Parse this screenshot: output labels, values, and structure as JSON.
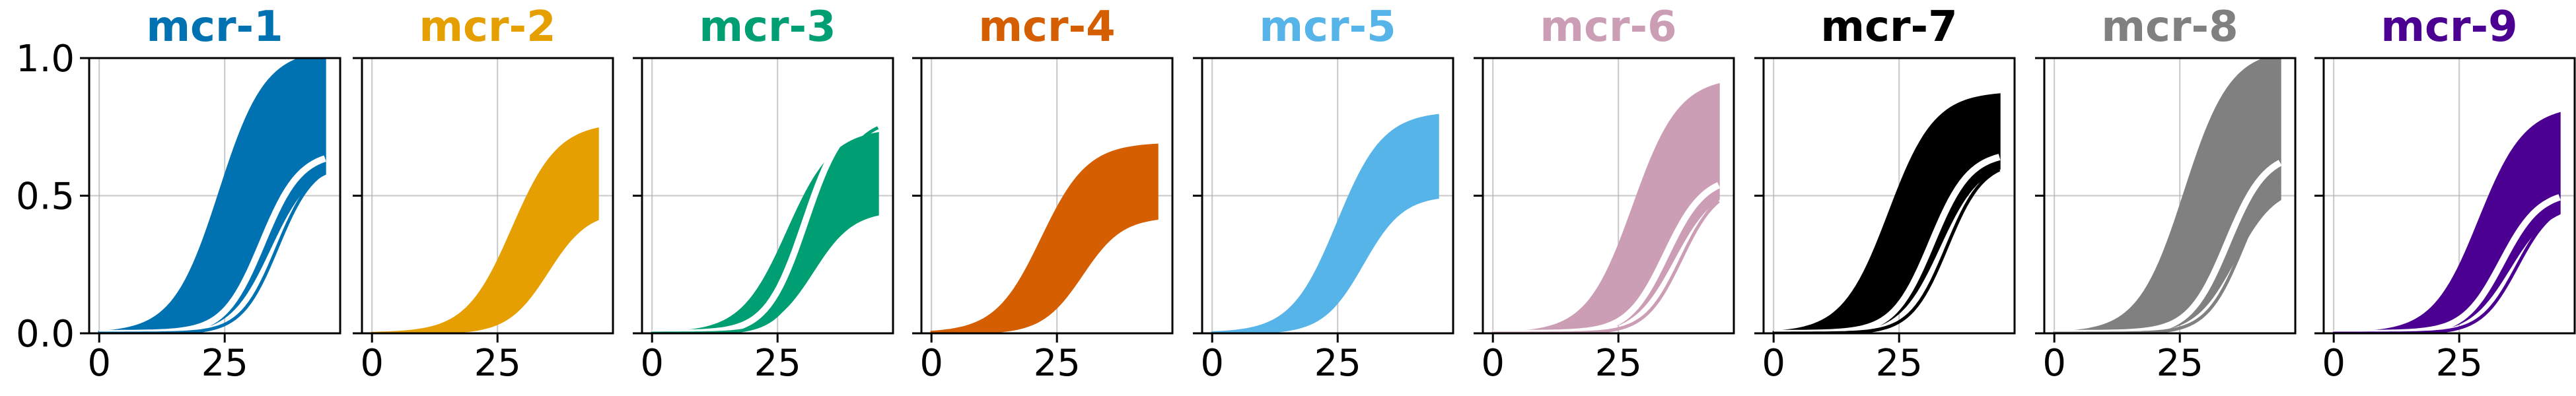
{
  "chart_data": {
    "type": "line",
    "layout": "small-multiples",
    "shared_y_axis": true,
    "xlim": [
      -2,
      48
    ],
    "ylim": [
      0,
      1
    ],
    "x_ticks": [
      0,
      25
    ],
    "x_tick_labels": [
      "0",
      "25"
    ],
    "y_ticks": [
      0,
      0.5,
      1
    ],
    "y_tick_labels": [
      "0.0",
      "0.5",
      "1.0"
    ],
    "grid": true,
    "legend": "none",
    "x_start": 0,
    "x_end": 45,
    "panels": [
      {
        "title": "mcr-1",
        "color": "#0072B2",
        "band_upper_end": 1.0,
        "band_lower_end": 0.55,
        "upper_midpoint": 24,
        "lower_midpoint": 34,
        "outlier_end": 0.58
      },
      {
        "title": "mcr-2",
        "color": "#E69F00",
        "band_upper_end": 0.74,
        "band_lower_end": 0.4,
        "upper_midpoint": 28,
        "lower_midpoint": 35
      },
      {
        "title": "mcr-3",
        "color": "#009E73",
        "band_upper_end": 0.72,
        "band_lower_end": 0.4,
        "upper_midpoint": 27,
        "lower_midpoint": 32,
        "outlier_end": 0.72
      },
      {
        "title": "mcr-4",
        "color": "#D55E00",
        "band_upper_end": 0.67,
        "band_lower_end": 0.38,
        "upper_midpoint": 22,
        "lower_midpoint": 30
      },
      {
        "title": "mcr-5",
        "color": "#56B4E9",
        "band_upper_end": 0.78,
        "band_lower_end": 0.45,
        "upper_midpoint": 25,
        "lower_midpoint": 30
      },
      {
        "title": "mcr-6",
        "color": "#CC9EB5",
        "band_upper_end": 0.9,
        "band_lower_end": 0.48,
        "upper_midpoint": 28,
        "lower_midpoint": 36,
        "outlier_end": 0.5
      },
      {
        "title": "mcr-7",
        "color": "#000000",
        "band_upper_end": 0.85,
        "band_lower_end": 0.56,
        "upper_midpoint": 23,
        "lower_midpoint": 33,
        "outlier_end": 0.58
      },
      {
        "title": "mcr-8",
        "color": "#808080",
        "band_upper_end": 1.0,
        "band_lower_end": 0.48,
        "upper_midpoint": 26,
        "lower_midpoint": 36,
        "outlier_end": 0.58
      },
      {
        "title": "mcr-9",
        "color": "#4B0092",
        "band_upper_end": 0.8,
        "band_lower_end": 0.42,
        "upper_midpoint": 29,
        "lower_midpoint": 35,
        "outlier_end": 0.45
      }
    ]
  }
}
